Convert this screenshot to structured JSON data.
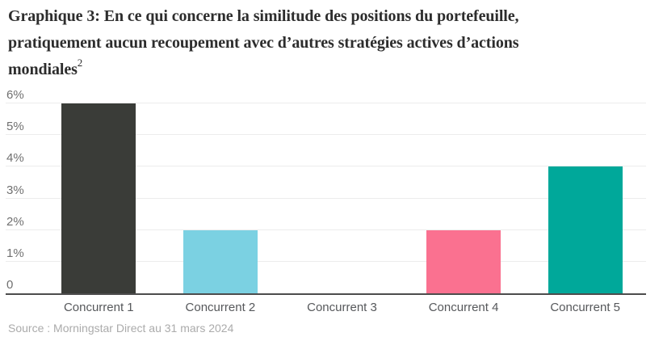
{
  "title": {
    "lines": [
      "Graphique 3: En ce qui concerne la similitude des positions du portefeuille,",
      "pratiquement aucun recoupement avec d’autres stratégies actives d’actions",
      "mondiales"
    ],
    "superscript": "2"
  },
  "source": "Source : Morningstar Direct au 31 mars 2024",
  "colors": {
    "background": "#ffffff",
    "title_text": "#2d2d2d",
    "axis_line": "#4d4d4d",
    "gridline": "#ececec",
    "y_label": "#707070",
    "x_label": "#56585b",
    "source_text": "#ababab"
  },
  "chart_data": {
    "type": "bar",
    "title": "Graphique 3: En ce qui concerne la similitude des positions du portefeuille, pratiquement aucun recoupement avec d’autres stratégies actives d’actions mondiales²",
    "categories": [
      "Concurrent 1",
      "Concurrent 2",
      "Concurrent 3",
      "Concurrent 4",
      "Concurrent 5"
    ],
    "values": [
      6,
      2,
      0,
      2,
      4
    ],
    "bar_colors": [
      "#3a3c38",
      "#7bd1e2",
      null,
      "#fa7190",
      "#00a89a"
    ],
    "xlabel": "",
    "ylabel": "",
    "ylim": [
      0,
      6
    ],
    "grid": true,
    "legend": false,
    "yticks": [
      {
        "value": 6,
        "label": "6%"
      },
      {
        "value": 5,
        "label": "5%"
      },
      {
        "value": 4,
        "label": "4%"
      },
      {
        "value": 3,
        "label": "3%"
      },
      {
        "value": 2,
        "label": "2%"
      },
      {
        "value": 1,
        "label": "1%"
      },
      {
        "value": 0,
        "label": "0"
      }
    ],
    "source_note": "Source : Morningstar Direct au 31 mars 2024"
  }
}
